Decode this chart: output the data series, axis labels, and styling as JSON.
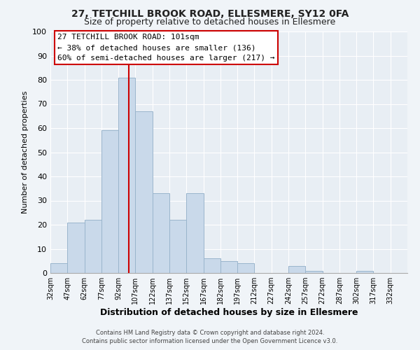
{
  "title1": "27, TETCHILL BROOK ROAD, ELLESMERE, SY12 0FA",
  "title2": "Size of property relative to detached houses in Ellesmere",
  "xlabel": "Distribution of detached houses by size in Ellesmere",
  "ylabel": "Number of detached properties",
  "bin_edges": [
    32,
    47,
    62,
    77,
    92,
    107,
    122,
    137,
    152,
    167,
    182,
    197,
    212,
    227,
    242,
    257,
    272,
    287,
    302,
    317,
    332
  ],
  "bar_heights": [
    4,
    21,
    22,
    59,
    81,
    67,
    33,
    22,
    33,
    6,
    5,
    4,
    0,
    0,
    3,
    1,
    0,
    0,
    1,
    0
  ],
  "bar_color": "#c9d9ea",
  "bar_edgecolor": "#9ab5cc",
  "vline_x": 101,
  "vline_color": "#cc0000",
  "ylim": [
    0,
    100
  ],
  "xlim": [
    32,
    347
  ],
  "annotation_title": "27 TETCHILL BROOK ROAD: 101sqm",
  "annotation_line1": "← 38% of detached houses are smaller (136)",
  "annotation_line2": "60% of semi-detached houses are larger (217) →",
  "annotation_box_color": "#ffffff",
  "annotation_box_edgecolor": "#cc0000",
  "footer1": "Contains HM Land Registry data © Crown copyright and database right 2024.",
  "footer2": "Contains public sector information licensed under the Open Government Licence v3.0.",
  "tick_labels": [
    "32sqm",
    "47sqm",
    "62sqm",
    "77sqm",
    "92sqm",
    "107sqm",
    "122sqm",
    "137sqm",
    "152sqm",
    "167sqm",
    "182sqm",
    "197sqm",
    "212sqm",
    "227sqm",
    "242sqm",
    "257sqm",
    "272sqm",
    "287sqm",
    "302sqm",
    "317sqm",
    "332sqm"
  ],
  "background_color": "#f0f4f8",
  "plot_bg_color": "#e8eef4",
  "grid_color": "#ffffff",
  "title_fontsize": 10,
  "subtitle_fontsize": 9
}
